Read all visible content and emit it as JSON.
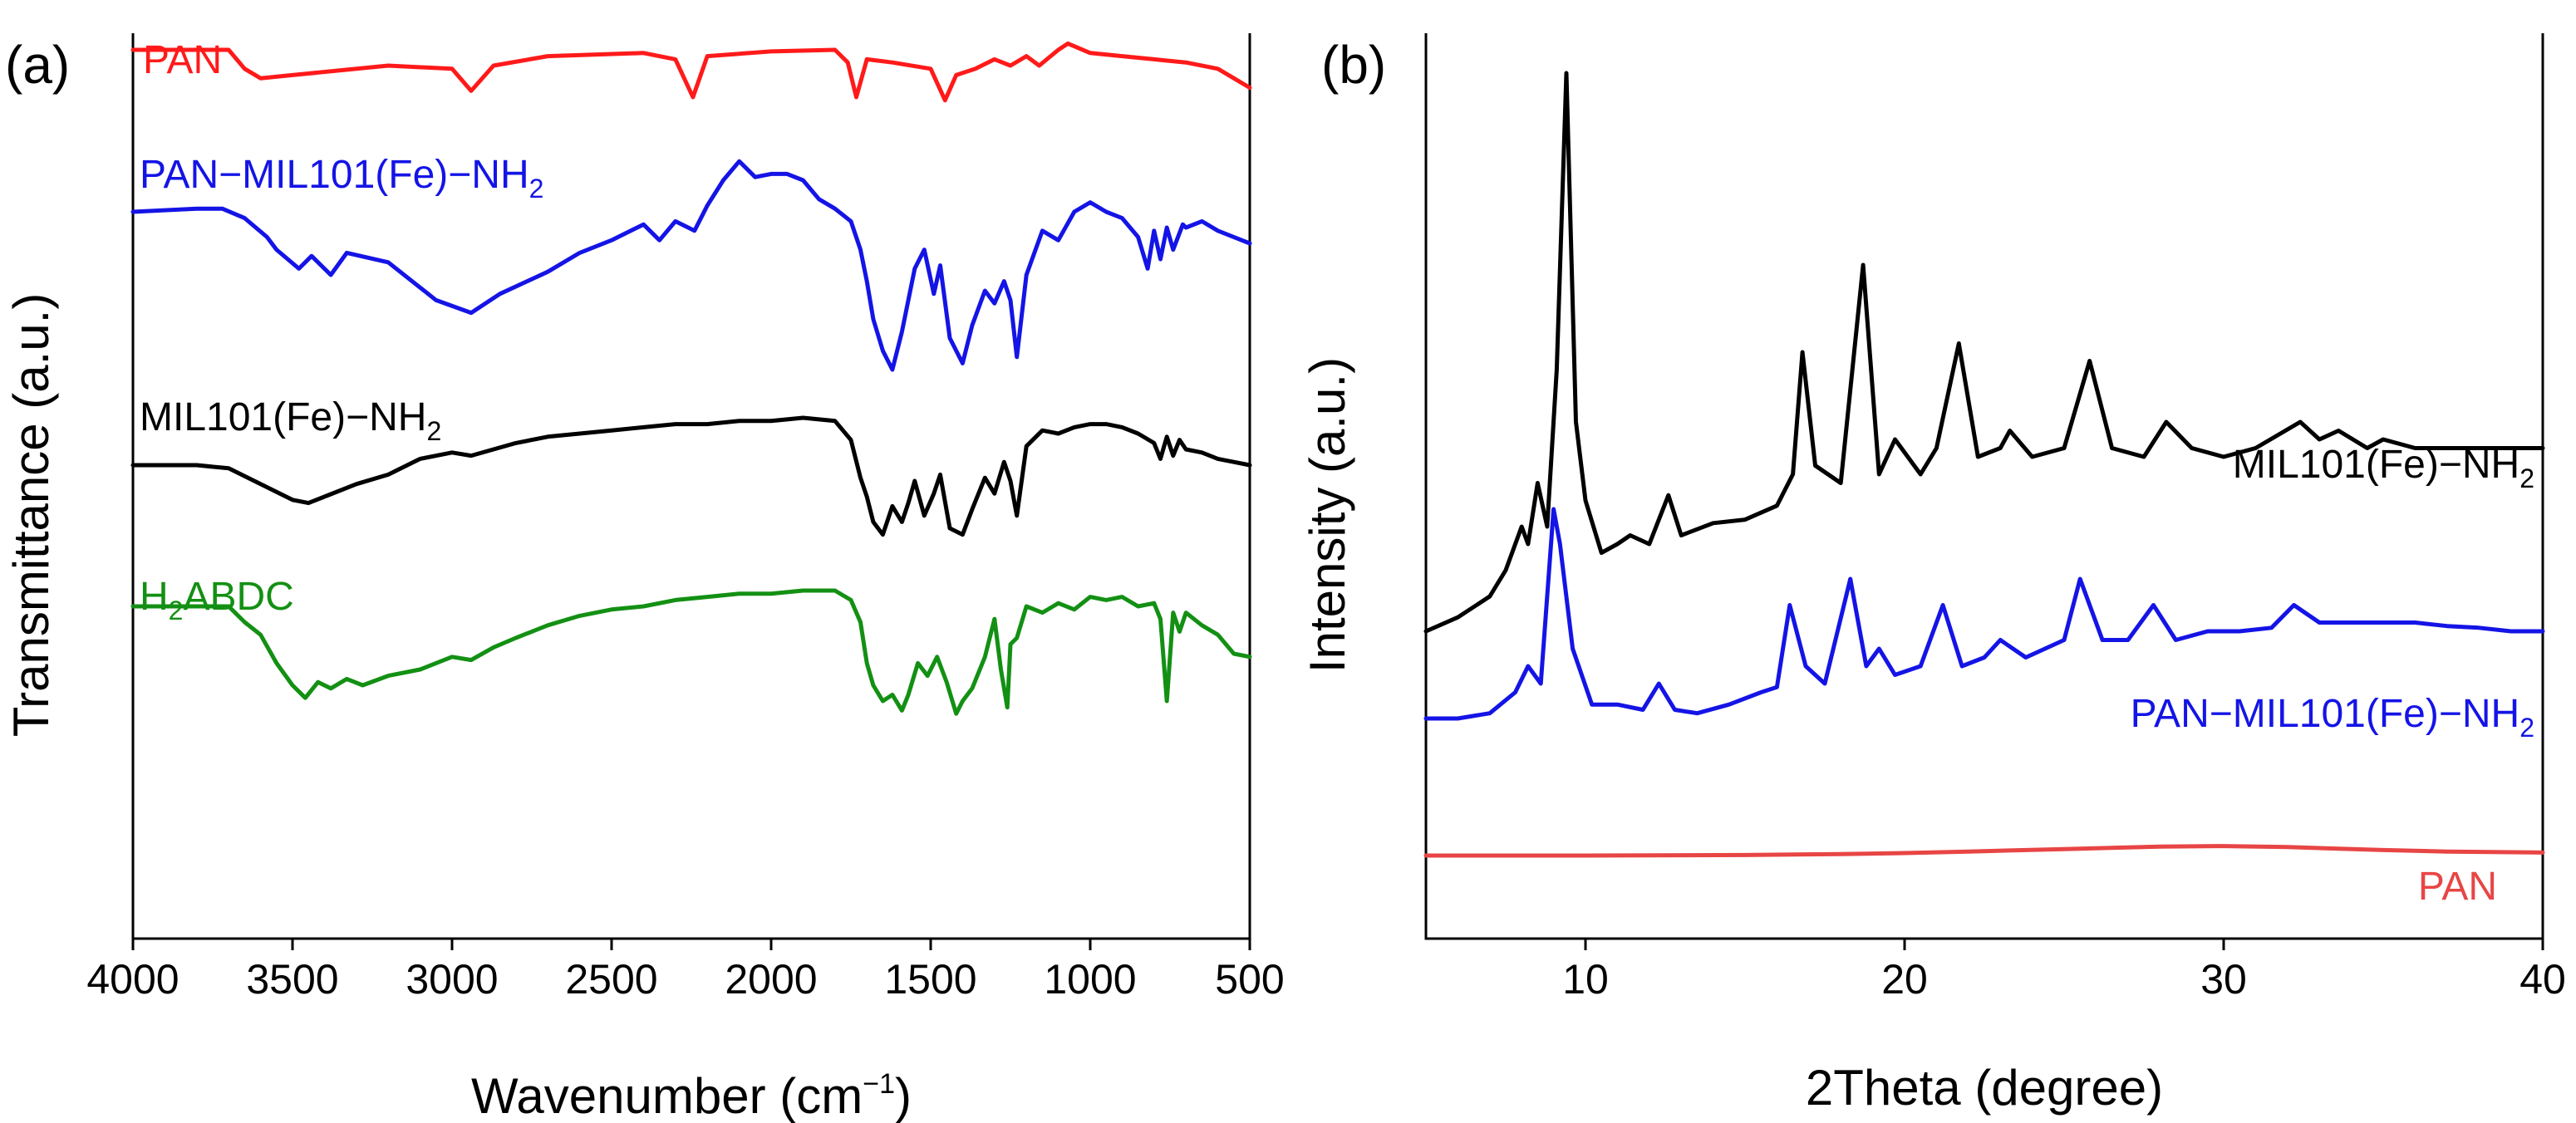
{
  "chart_data": [
    {
      "type": "line",
      "panel_label": "(a)",
      "xlabel": "Wavenumber (cm",
      "xlabel_sup": "−1",
      "xlabel_end": ")",
      "ylabel": "Transmittance (a.u.)",
      "xlim": [
        4000,
        500
      ],
      "x_reversed": true,
      "xticks": [
        4000,
        3500,
        3000,
        2500,
        2000,
        1500,
        1000,
        500
      ],
      "xtick_labels": [
        "4000",
        "3500",
        "3000",
        "2500",
        "2000",
        "1500",
        "1000",
        "500"
      ],
      "yticks_shown": false,
      "series": [
        {
          "name": "PAN",
          "label": "PAN",
          "sub": "",
          "suffix": "",
          "color": "#ff1a1a",
          "x": [
            4000,
            3700,
            3650,
            3600,
            3500,
            3200,
            3000,
            2940,
            2870,
            2700,
            2400,
            2300,
            2245,
            2200,
            2000,
            1800,
            1760,
            1733,
            1700,
            1620,
            1500,
            1455,
            1420,
            1360,
            1300,
            1250,
            1200,
            1160,
            1100,
            1070,
            1000,
            900,
            800,
            700,
            600,
            550,
            500
          ],
          "y": [
            0.0,
            0.0,
            -0.6,
            -0.9,
            -0.8,
            -0.5,
            -0.6,
            -1.3,
            -0.5,
            -0.2,
            -0.1,
            -0.3,
            -1.5,
            -0.2,
            -0.05,
            0.0,
            -0.4,
            -1.5,
            -0.3,
            -0.4,
            -0.6,
            -1.6,
            -0.8,
            -0.6,
            -0.3,
            -0.5,
            -0.2,
            -0.5,
            0.0,
            0.2,
            -0.1,
            -0.2,
            -0.3,
            -0.4,
            -0.6,
            -0.9,
            -1.2
          ]
        },
        {
          "name": "PAN−MIL101(Fe)−NH2",
          "label": "PAN−MIL101(Fe)−NH",
          "sub": "2",
          "suffix": "",
          "color": "#1414e6",
          "x": [
            4000,
            3800,
            3720,
            3650,
            3580,
            3550,
            3480,
            3440,
            3380,
            3330,
            3200,
            3050,
            2940,
            2850,
            2700,
            2600,
            2500,
            2400,
            2350,
            2300,
            2240,
            2200,
            2150,
            2100,
            2050,
            2000,
            1950,
            1900,
            1850,
            1800,
            1750,
            1720,
            1700,
            1680,
            1650,
            1620,
            1590,
            1570,
            1550,
            1520,
            1490,
            1470,
            1440,
            1400,
            1370,
            1330,
            1300,
            1270,
            1250,
            1230,
            1200,
            1150,
            1100,
            1050,
            1000,
            950,
            900,
            850,
            820,
            800,
            780,
            760,
            740,
            710,
            700,
            650,
            600,
            550,
            500
          ],
          "y": [
            0.0,
            0.1,
            0.1,
            -0.2,
            -0.8,
            -1.2,
            -1.8,
            -1.4,
            -2.0,
            -1.3,
            -1.6,
            -2.8,
            -3.2,
            -2.6,
            -1.9,
            -1.3,
            -0.9,
            -0.4,
            -0.9,
            -0.3,
            -0.6,
            0.2,
            1.0,
            1.6,
            1.1,
            1.2,
            1.2,
            1.0,
            0.4,
            0.1,
            -0.3,
            -1.2,
            -2.2,
            -3.4,
            -4.4,
            -5.0,
            -3.8,
            -2.8,
            -1.8,
            -1.2,
            -2.6,
            -1.7,
            -4.0,
            -4.8,
            -3.6,
            -2.5,
            -2.9,
            -2.2,
            -2.8,
            -4.6,
            -2.0,
            -0.6,
            -0.9,
            0.0,
            0.3,
            0.0,
            -0.2,
            -0.8,
            -1.8,
            -0.6,
            -1.5,
            -0.5,
            -1.2,
            -0.4,
            -0.5,
            -0.3,
            -0.6,
            -0.8,
            -1.0
          ]
        },
        {
          "name": "MIL101(Fe)−NH2",
          "label": "MIL101(Fe)−NH",
          "sub": "2",
          "suffix": "",
          "color": "#000000",
          "x": [
            4000,
            3800,
            3700,
            3600,
            3500,
            3450,
            3400,
            3300,
            3200,
            3100,
            3000,
            2940,
            2870,
            2800,
            2700,
            2600,
            2500,
            2400,
            2300,
            2200,
            2100,
            2000,
            1900,
            1800,
            1750,
            1720,
            1700,
            1680,
            1650,
            1620,
            1590,
            1570,
            1550,
            1520,
            1490,
            1470,
            1440,
            1400,
            1370,
            1330,
            1300,
            1270,
            1250,
            1230,
            1200,
            1150,
            1100,
            1050,
            1000,
            950,
            900,
            850,
            800,
            780,
            760,
            740,
            720,
            700,
            650,
            600,
            550,
            500
          ],
          "y": [
            0.0,
            0.0,
            -0.1,
            -0.6,
            -1.1,
            -1.2,
            -1.0,
            -0.6,
            -0.3,
            0.2,
            0.4,
            0.3,
            0.5,
            0.7,
            0.9,
            1.0,
            1.1,
            1.2,
            1.3,
            1.3,
            1.4,
            1.4,
            1.5,
            1.4,
            0.8,
            -0.4,
            -1.0,
            -1.8,
            -2.2,
            -1.3,
            -1.8,
            -1.2,
            -0.5,
            -1.6,
            -0.9,
            -0.3,
            -2.0,
            -2.2,
            -1.4,
            -0.4,
            -0.9,
            0.1,
            -0.5,
            -1.6,
            0.6,
            1.1,
            1.0,
            1.2,
            1.3,
            1.3,
            1.2,
            1.0,
            0.7,
            0.2,
            0.9,
            0.3,
            0.8,
            0.5,
            0.4,
            0.2,
            0.1,
            0.0
          ]
        },
        {
          "name": "H2ABDC",
          "label": "ABDC",
          "sub": "2",
          "prefix": "H",
          "suffix": "",
          "color": "#139013",
          "x": [
            4000,
            3800,
            3700,
            3650,
            3600,
            3550,
            3500,
            3460,
            3420,
            3380,
            3330,
            3280,
            3200,
            3100,
            3000,
            2940,
            2870,
            2800,
            2700,
            2600,
            2500,
            2400,
            2300,
            2200,
            2100,
            2000,
            1900,
            1800,
            1750,
            1720,
            1700,
            1680,
            1650,
            1620,
            1590,
            1570,
            1540,
            1510,
            1480,
            1450,
            1420,
            1400,
            1370,
            1330,
            1300,
            1280,
            1260,
            1250,
            1230,
            1200,
            1150,
            1100,
            1050,
            1000,
            950,
            900,
            850,
            800,
            780,
            760,
            740,
            720,
            700,
            650,
            600,
            550,
            500
          ],
          "y": [
            0.0,
            0.0,
            0.0,
            -0.5,
            -0.9,
            -1.8,
            -2.5,
            -2.9,
            -2.4,
            -2.6,
            -2.3,
            -2.5,
            -2.2,
            -2.0,
            -1.6,
            -1.7,
            -1.3,
            -1.0,
            -0.6,
            -0.3,
            -0.1,
            0.0,
            0.2,
            0.3,
            0.4,
            0.4,
            0.5,
            0.5,
            0.2,
            -0.5,
            -1.8,
            -2.5,
            -3.0,
            -2.8,
            -3.3,
            -2.8,
            -1.8,
            -2.2,
            -1.6,
            -2.4,
            -3.4,
            -3.0,
            -2.6,
            -1.6,
            -0.4,
            -2.0,
            -3.2,
            -1.2,
            -1.0,
            0.0,
            -0.2,
            0.1,
            -0.1,
            0.3,
            0.2,
            0.3,
            0.0,
            0.1,
            -0.4,
            -3.0,
            -0.2,
            -0.8,
            -0.2,
            -0.6,
            -0.9,
            -1.5,
            -1.6
          ]
        }
      ]
    },
    {
      "type": "line",
      "panel_label": "(b)",
      "xlabel": "2Theta (degree)",
      "ylabel": "Intensity (a.u.)",
      "xlim": [
        5,
        40
      ],
      "xticks": [
        10,
        20,
        30,
        40
      ],
      "xtick_labels": [
        "10",
        "20",
        "30",
        "40"
      ],
      "yticks_shown": false,
      "series": [
        {
          "name": "MIL101(Fe)−NH2",
          "label": "MIL101(Fe)−NH",
          "sub": "2",
          "suffix": "",
          "color": "#000000",
          "x": [
            5,
            6,
            7,
            7.5,
            8,
            8.2,
            8.5,
            8.8,
            9.1,
            9.4,
            9.7,
            10.0,
            10.5,
            11,
            11.4,
            12,
            12.6,
            13,
            14,
            15,
            16,
            16.5,
            16.8,
            17.2,
            18,
            18.7,
            19.2,
            19.7,
            20.5,
            21,
            21.7,
            22.3,
            23,
            23.3,
            24,
            25,
            25.8,
            26.5,
            27.5,
            28.2,
            29,
            30,
            31,
            32.4,
            33,
            33.6,
            34.5,
            35,
            36,
            37,
            38,
            39,
            40
          ],
          "y": [
            0.0,
            0.8,
            2.0,
            3.5,
            6.0,
            5.0,
            8.5,
            6.0,
            15.0,
            32.0,
            12.0,
            7.5,
            4.5,
            5.0,
            5.5,
            5.0,
            7.8,
            5.5,
            6.2,
            6.4,
            7.2,
            9.0,
            16.0,
            9.5,
            8.5,
            21.0,
            9.0,
            11.0,
            9.0,
            10.5,
            16.5,
            10.0,
            10.5,
            11.5,
            10.0,
            10.5,
            15.5,
            10.5,
            10.0,
            12.0,
            10.5,
            10.0,
            10.5,
            12.0,
            11.0,
            11.5,
            10.5,
            11.0,
            10.5,
            10.5,
            10.5,
            10.5,
            10.5
          ]
        },
        {
          "name": "PAN−MIL101(Fe)−NH2",
          "label": "PAN−MIL101(Fe)−NH",
          "sub": "2",
          "suffix": "",
          "color": "#1414e6",
          "x": [
            5,
            6,
            7,
            7.8,
            8.2,
            8.6,
            9.0,
            9.2,
            9.6,
            10.2,
            11,
            11.8,
            12.3,
            12.8,
            13.5,
            14.5,
            15.5,
            16.0,
            16.4,
            16.9,
            17.5,
            18.3,
            18.8,
            19.2,
            19.7,
            20.5,
            21.2,
            21.8,
            22.5,
            23.0,
            23.8,
            25.0,
            25.5,
            26.2,
            27.0,
            27.8,
            28.5,
            29.5,
            30.5,
            31.5,
            32.2,
            33.0,
            34.0,
            35,
            36,
            37,
            38,
            39,
            40
          ],
          "y": [
            0.0,
            0.0,
            0.3,
            1.5,
            3.0,
            2.0,
            12.0,
            10.0,
            4.0,
            0.8,
            0.8,
            0.5,
            2.0,
            0.5,
            0.3,
            0.8,
            1.5,
            1.8,
            6.5,
            3.0,
            2.0,
            8.0,
            3.0,
            4.0,
            2.5,
            3.0,
            6.5,
            3.0,
            3.5,
            4.5,
            3.5,
            4.5,
            8.0,
            4.5,
            4.5,
            6.5,
            4.5,
            5.0,
            5.0,
            5.2,
            6.5,
            5.5,
            5.5,
            5.5,
            5.5,
            5.3,
            5.2,
            5.0,
            5.0
          ]
        },
        {
          "name": "PAN",
          "label": "PAN",
          "sub": "",
          "suffix": "",
          "color": "#e84545",
          "x": [
            5,
            10,
            15,
            18,
            20,
            22,
            25,
            28,
            30,
            32,
            35,
            37,
            40
          ],
          "y": [
            0.0,
            0.0,
            0.05,
            0.15,
            0.25,
            0.4,
            0.65,
            0.9,
            0.95,
            0.85,
            0.55,
            0.4,
            0.3
          ]
        }
      ]
    }
  ]
}
